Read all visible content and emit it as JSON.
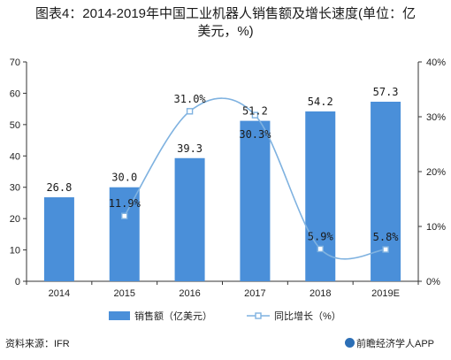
{
  "title_line1": "图表4：2014-2019年中国工业机器人销售额及增长速度(单位：亿",
  "title_line2": "美元，%)",
  "source": "资料来源：IFR",
  "brand": "前瞻经济学人APP",
  "colors": {
    "bar": "#4a8fd9",
    "line": "#7fb2e0",
    "axis": "#333333"
  },
  "chart_data": {
    "type": "bar",
    "categories": [
      "2014",
      "2015",
      "2016",
      "2017",
      "2018",
      "2019E"
    ],
    "series": [
      {
        "name": "销售额（亿美元）",
        "type": "bar",
        "axis": "left",
        "values": [
          26.8,
          30.0,
          39.3,
          51.2,
          54.2,
          57.3
        ],
        "labels": [
          "26.8",
          "30.0",
          "39.3",
          "51.2",
          "54.2",
          "57.3"
        ]
      },
      {
        "name": "同比增长（%）",
        "type": "line",
        "axis": "right",
        "values": [
          null,
          11.9,
          31.0,
          30.3,
          5.9,
          5.8
        ],
        "labels": [
          "",
          "11.9%",
          "31.0%",
          "30.3%",
          "5.9%",
          "5.8%"
        ]
      }
    ],
    "y_left": {
      "min": 0,
      "max": 70,
      "ticks": [
        "0",
        "10",
        "20",
        "30",
        "40",
        "50",
        "60",
        "70"
      ]
    },
    "y_right": {
      "min": 0,
      "max": 40,
      "ticks": [
        "0%",
        "10%",
        "20%",
        "30%",
        "40%"
      ]
    },
    "legend": "bottom"
  }
}
